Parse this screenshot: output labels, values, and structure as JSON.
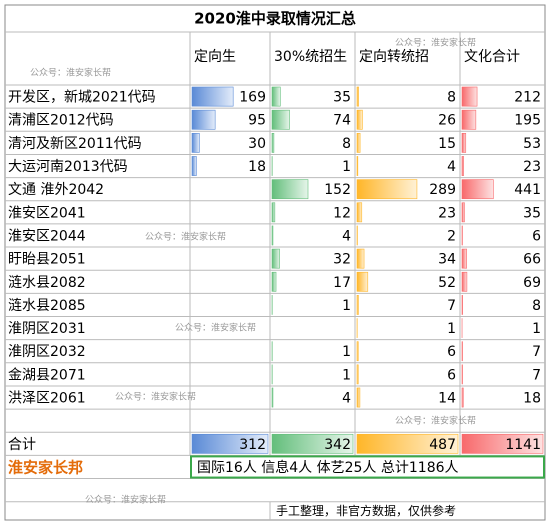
{
  "title": "2020淮中录取情况汇总",
  "headers": [
    "定向生",
    "30%统招生",
    "定向转统招",
    "文化合计"
  ],
  "rows": [
    [
      "开发区，新城2021代码",
      169,
      35,
      8,
      212
    ],
    [
      "清浦区2012代码",
      95,
      74,
      26,
      195
    ],
    [
      "清河及新区2011代码",
      30,
      8,
      15,
      53
    ],
    [
      "大运河南2013代码",
      18,
      1,
      4,
      23
    ],
    [
      "文通 淮外2042",
      null,
      152,
      289,
      441
    ],
    [
      "淮安区2041",
      null,
      12,
      23,
      35
    ],
    [
      "淮安区2044",
      null,
      4,
      2,
      6
    ],
    [
      "盱眙县2051",
      null,
      32,
      34,
      66
    ],
    [
      "涟水县2082",
      null,
      17,
      52,
      69
    ],
    [
      "涟水县2085",
      null,
      1,
      7,
      8
    ],
    [
      "淮阴区2031",
      null,
      null,
      1,
      1
    ],
    [
      "淮阴区2032",
      null,
      1,
      6,
      7
    ],
    [
      "金湖县2071",
      null,
      1,
      6,
      7
    ],
    [
      "洪泽区2061",
      null,
      4,
      14,
      18
    ]
  ],
  "total": [
    "合计",
    312,
    342,
    487,
    1141
  ],
  "brand": {
    "label": "淮安家长邦",
    "summary": "国际16人  信息4人  体艺25人  总计1186人"
  },
  "footer": "手工整理，非官方数据，仅供参考",
  "watermarks": [
    "公众号：淮安家长帮",
    "公众号：淮安家长帮",
    "公众号：淮安家长帮",
    "公众号：淮安家长帮",
    "公众号：淮安家长帮",
    "公众号：淮安家长帮",
    "公众号：淮安家长帮"
  ]
}
